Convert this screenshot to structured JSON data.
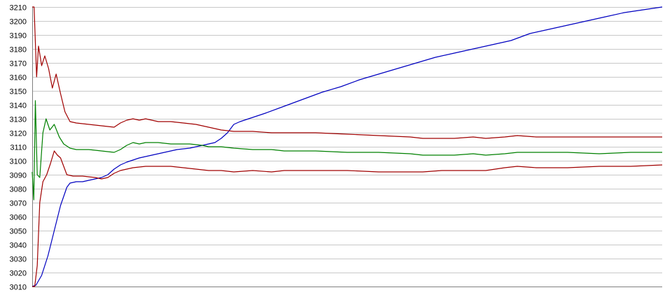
{
  "chart_data": {
    "type": "line",
    "title": "",
    "xlabel": "",
    "ylabel": "",
    "xlim": [
      0,
      100
    ],
    "ylim": [
      3010,
      3210
    ],
    "y_ticks": [
      "3010",
      "3020",
      "3030",
      "3040",
      "3050",
      "3060",
      "3070",
      "3080",
      "3090",
      "3100",
      "3110",
      "3120",
      "3130",
      "3140",
      "3150",
      "3160",
      "3170",
      "3180",
      "3190",
      "3200",
      "3210"
    ],
    "grid": true,
    "legend": "none",
    "series": [
      {
        "color": "#0000c0",
        "points": [
          [
            0,
            3010
          ],
          [
            0.6,
            3011
          ],
          [
            1.5,
            3018
          ],
          [
            2.5,
            3032
          ],
          [
            3.5,
            3050
          ],
          [
            4.5,
            3068
          ],
          [
            5.5,
            3081
          ],
          [
            6,
            3084
          ],
          [
            7,
            3085
          ],
          [
            8,
            3085
          ],
          [
            9,
            3086
          ],
          [
            10,
            3087
          ],
          [
            11,
            3088
          ],
          [
            12,
            3090
          ],
          [
            13,
            3094
          ],
          [
            14,
            3097
          ],
          [
            15,
            3099
          ],
          [
            17,
            3102
          ],
          [
            19,
            3104
          ],
          [
            21,
            3106
          ],
          [
            23,
            3108
          ],
          [
            25,
            3109
          ],
          [
            27,
            3111
          ],
          [
            29,
            3113
          ],
          [
            30,
            3116
          ],
          [
            31,
            3120
          ],
          [
            32,
            3126
          ],
          [
            33,
            3128
          ],
          [
            35,
            3131
          ],
          [
            37,
            3134
          ],
          [
            40,
            3139
          ],
          [
            43,
            3144
          ],
          [
            46,
            3149
          ],
          [
            49,
            3153
          ],
          [
            52,
            3158
          ],
          [
            55,
            3162
          ],
          [
            58,
            3166
          ],
          [
            61,
            3170
          ],
          [
            64,
            3174
          ],
          [
            67,
            3177
          ],
          [
            70,
            3180
          ],
          [
            73,
            3183
          ],
          [
            76,
            3186
          ],
          [
            79,
            3191
          ],
          [
            82,
            3194
          ],
          [
            85,
            3197
          ],
          [
            88,
            3200
          ],
          [
            91,
            3203
          ],
          [
            94,
            3206
          ],
          [
            97,
            3208
          ],
          [
            100,
            3210
          ]
        ]
      },
      {
        "color": "#008000",
        "points": [
          [
            0,
            3092
          ],
          [
            0.25,
            3072
          ],
          [
            0.5,
            3143
          ],
          [
            0.8,
            3090
          ],
          [
            1.2,
            3088
          ],
          [
            1.7,
            3120
          ],
          [
            2.2,
            3130
          ],
          [
            2.8,
            3122
          ],
          [
            3.5,
            3126
          ],
          [
            4.3,
            3117
          ],
          [
            5,
            3112
          ],
          [
            6,
            3109
          ],
          [
            7,
            3108
          ],
          [
            9,
            3108
          ],
          [
            11,
            3107
          ],
          [
            13,
            3106
          ],
          [
            14,
            3108
          ],
          [
            15,
            3111
          ],
          [
            16,
            3113
          ],
          [
            17,
            3112
          ],
          [
            18,
            3113
          ],
          [
            19,
            3113
          ],
          [
            20,
            3113
          ],
          [
            22,
            3112
          ],
          [
            24,
            3112
          ],
          [
            25,
            3112
          ],
          [
            27,
            3111
          ],
          [
            28,
            3110
          ],
          [
            30,
            3110
          ],
          [
            32,
            3109
          ],
          [
            35,
            3108
          ],
          [
            38,
            3108
          ],
          [
            40,
            3107
          ],
          [
            45,
            3107
          ],
          [
            50,
            3106
          ],
          [
            55,
            3106
          ],
          [
            60,
            3105
          ],
          [
            62,
            3104
          ],
          [
            65,
            3104
          ],
          [
            67,
            3104
          ],
          [
            70,
            3105
          ],
          [
            72,
            3104
          ],
          [
            75,
            3105
          ],
          [
            77,
            3106
          ],
          [
            80,
            3106
          ],
          [
            85,
            3106
          ],
          [
            90,
            3105
          ],
          [
            95,
            3106
          ],
          [
            100,
            3106
          ]
        ]
      },
      {
        "color": "#a00000",
        "points": [
          [
            0,
            3210
          ],
          [
            0.3,
            3210
          ],
          [
            0.7,
            3160
          ],
          [
            1,
            3182
          ],
          [
            1.5,
            3168
          ],
          [
            2,
            3175
          ],
          [
            2.6,
            3166
          ],
          [
            3.2,
            3152
          ],
          [
            3.8,
            3162
          ],
          [
            4.5,
            3148
          ],
          [
            5.2,
            3135
          ],
          [
            6,
            3128
          ],
          [
            7,
            3127
          ],
          [
            9,
            3126
          ],
          [
            11,
            3125
          ],
          [
            13,
            3124
          ],
          [
            14,
            3127
          ],
          [
            15,
            3129
          ],
          [
            16,
            3130
          ],
          [
            17,
            3129
          ],
          [
            18,
            3130
          ],
          [
            19,
            3129
          ],
          [
            20,
            3128
          ],
          [
            22,
            3128
          ],
          [
            24,
            3127
          ],
          [
            26,
            3126
          ],
          [
            28,
            3124
          ],
          [
            30,
            3122
          ],
          [
            32,
            3121
          ],
          [
            35,
            3121
          ],
          [
            38,
            3120
          ],
          [
            40,
            3120
          ],
          [
            45,
            3120
          ],
          [
            50,
            3119
          ],
          [
            55,
            3118
          ],
          [
            60,
            3117
          ],
          [
            62,
            3116
          ],
          [
            65,
            3116
          ],
          [
            67,
            3116
          ],
          [
            70,
            3117
          ],
          [
            72,
            3116
          ],
          [
            75,
            3117
          ],
          [
            77,
            3118
          ],
          [
            80,
            3117
          ],
          [
            85,
            3117
          ],
          [
            90,
            3117
          ],
          [
            95,
            3117
          ],
          [
            100,
            3117
          ]
        ]
      },
      {
        "color": "#a00000",
        "points": [
          [
            0,
            3010
          ],
          [
            0.4,
            3010
          ],
          [
            0.8,
            3025
          ],
          [
            1.2,
            3070
          ],
          [
            1.7,
            3085
          ],
          [
            2.3,
            3090
          ],
          [
            2.9,
            3098
          ],
          [
            3.5,
            3107
          ],
          [
            4,
            3104
          ],
          [
            4.5,
            3102
          ],
          [
            5,
            3096
          ],
          [
            5.5,
            3090
          ],
          [
            6.5,
            3089
          ],
          [
            8,
            3089
          ],
          [
            10,
            3088
          ],
          [
            11,
            3087
          ],
          [
            12,
            3088
          ],
          [
            13,
            3091
          ],
          [
            14,
            3093
          ],
          [
            15,
            3094
          ],
          [
            16,
            3095
          ],
          [
            18,
            3096
          ],
          [
            20,
            3096
          ],
          [
            22,
            3096
          ],
          [
            24,
            3095
          ],
          [
            26,
            3094
          ],
          [
            28,
            3093
          ],
          [
            30,
            3093
          ],
          [
            32,
            3092
          ],
          [
            35,
            3093
          ],
          [
            38,
            3092
          ],
          [
            40,
            3093
          ],
          [
            45,
            3093
          ],
          [
            50,
            3093
          ],
          [
            55,
            3092
          ],
          [
            60,
            3092
          ],
          [
            62,
            3092
          ],
          [
            65,
            3093
          ],
          [
            68,
            3093
          ],
          [
            70,
            3093
          ],
          [
            72,
            3093
          ],
          [
            75,
            3095
          ],
          [
            77,
            3096
          ],
          [
            80,
            3095
          ],
          [
            83,
            3095
          ],
          [
            85,
            3095
          ],
          [
            90,
            3096
          ],
          [
            95,
            3096
          ],
          [
            100,
            3097
          ]
        ]
      }
    ]
  }
}
